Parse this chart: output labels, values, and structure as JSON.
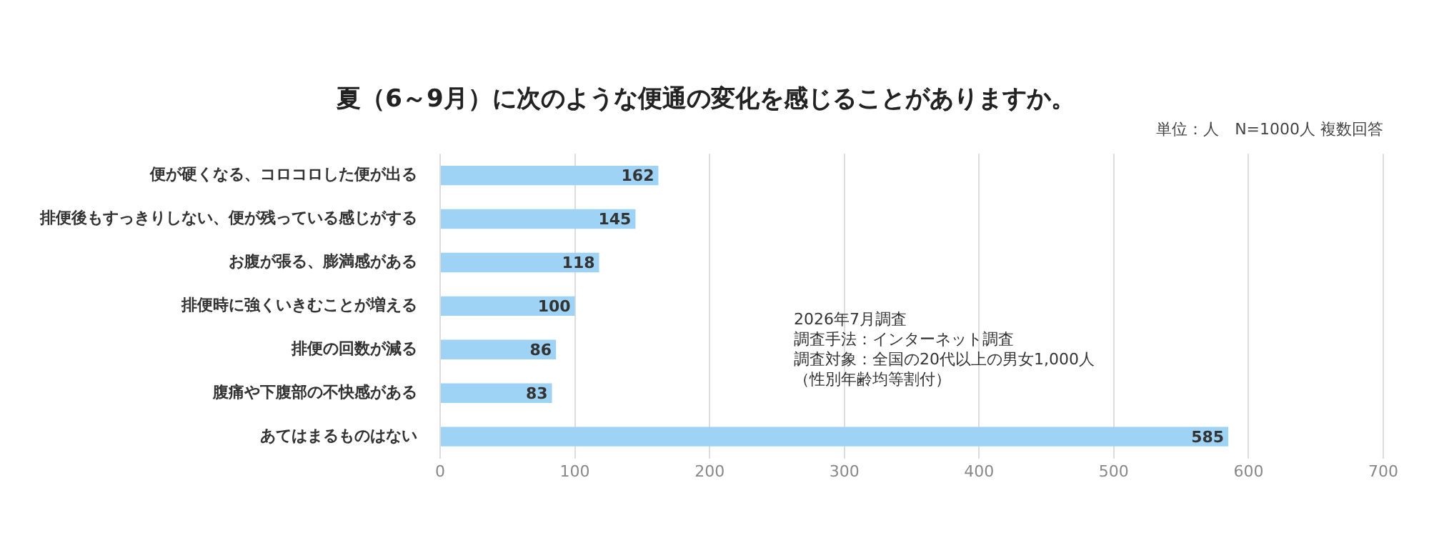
{
  "chart_data": {
    "type": "bar",
    "orientation": "horizontal",
    "title": "夏（6～9月）に次のような便通の変化を感じることがありますか。",
    "subtitle": "単位：人　N=1000人 複数回答",
    "categories": [
      "便が硬くなる、コロコロした便が出る",
      "排便後もすっきりしない、便が残っている感じがする",
      "お腹が張る、膨満感がある",
      "排便時に強くいきむことが増える",
      "排便の回数が減る",
      "腹痛や下腹部の不快感がある",
      "あてはまるものはない"
    ],
    "values": [
      162,
      145,
      118,
      100,
      86,
      83,
      585
    ],
    "color": "#9fd3f5",
    "xlim": [
      0,
      700
    ],
    "xticks": [
      0,
      100,
      200,
      300,
      400,
      500,
      600,
      700
    ],
    "grid": "x",
    "legend": false,
    "data_labels": true,
    "annotations": [
      "2026年7月調査",
      "調査手法：インターネット調査",
      "調査対象：全国の20代以上の男女1,000人",
      "（性別年齢均等割付）"
    ]
  }
}
